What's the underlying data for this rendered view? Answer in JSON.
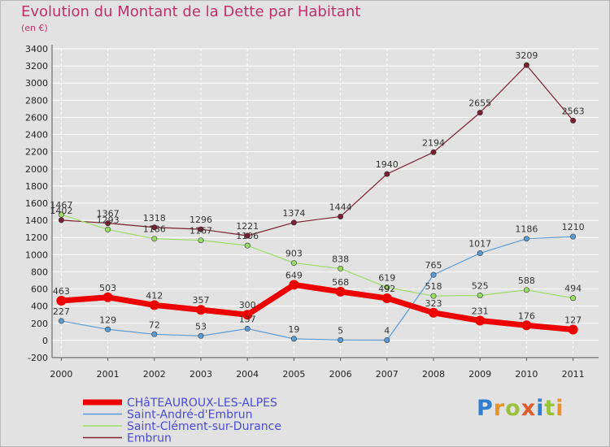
{
  "title": "Evolution du Montant de la Dette par Habitant",
  "subtitle": "(en €)",
  "logo": "Proxiti",
  "chart_data": {
    "type": "line",
    "title": "Evolution du Montant de la Dette par Habitant",
    "ylabel": "(en €)",
    "x": [
      "2000",
      "2001",
      "2002",
      "2003",
      "2004",
      "2005",
      "2006",
      "2007",
      "2008",
      "2009",
      "2010",
      "2011"
    ],
    "ylim": [
      -200,
      3400
    ],
    "yticks": [
      -200,
      0,
      200,
      400,
      600,
      800,
      1000,
      1200,
      1400,
      1600,
      1800,
      2000,
      2200,
      2400,
      2600,
      2800,
      3000,
      3200,
      3400
    ],
    "grid": true,
    "legend": "bottom-left",
    "series": [
      {
        "name": "CHâTEAUROUX-LES-ALPES",
        "color": "#ee0000",
        "width": 7,
        "values": [
          463,
          503,
          412,
          357,
          300,
          649,
          568,
          492,
          323,
          231,
          176,
          127
        ]
      },
      {
        "name": "Saint-André-d'Embrun",
        "color": "#5a9bd5",
        "width": 1.2,
        "values": [
          227,
          129,
          72,
          53,
          137,
          19,
          5,
          4,
          765,
          1017,
          1186,
          1210
        ]
      },
      {
        "name": "Saint-Clément-sur-Durance",
        "color": "#99dd66",
        "width": 1.2,
        "values": [
          1467,
          1293,
          1186,
          1167,
          1106,
          903,
          838,
          619,
          518,
          525,
          588,
          494
        ]
      },
      {
        "name": "Embrun",
        "color": "#7a2030",
        "width": 1.2,
        "values": [
          1402,
          1367,
          1318,
          1296,
          1221,
          1374,
          1444,
          1940,
          2194,
          2655,
          3209,
          2563
        ]
      }
    ]
  }
}
